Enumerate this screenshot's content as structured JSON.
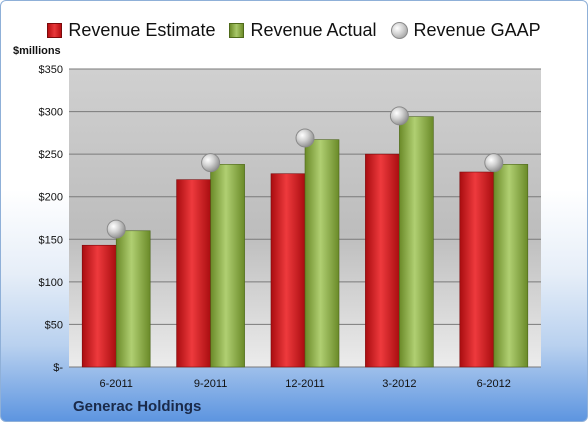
{
  "legend": {
    "estimate": "Revenue Estimate",
    "actual": "Revenue Actual",
    "gaap": "Revenue GAAP"
  },
  "unit_label": "$millions",
  "company": "Generac Holdings",
  "colors": {
    "estimate": "#d42124",
    "actual": "#8fb04a",
    "gaap": "#c8c8c8"
  },
  "chart_data": {
    "type": "bar",
    "categories": [
      "6-2011",
      "9-2011",
      "12-2011",
      "3-2012",
      "6-2012"
    ],
    "series": [
      {
        "name": "Revenue Estimate",
        "values": [
          143,
          220,
          227,
          250,
          229
        ]
      },
      {
        "name": "Revenue Actual",
        "values": [
          160,
          238,
          267,
          294,
          238
        ]
      },
      {
        "name": "Revenue GAAP",
        "values": [
          162,
          240,
          269,
          295,
          240
        ]
      }
    ],
    "ylim": [
      0,
      350
    ],
    "yticks": [
      0,
      50,
      100,
      150,
      200,
      250,
      300,
      350
    ],
    "ytick_labels": [
      "$-",
      "$50",
      "$100",
      "$150",
      "$200",
      "$250",
      "$300",
      "$350"
    ],
    "grid": true,
    "legend": "top"
  }
}
